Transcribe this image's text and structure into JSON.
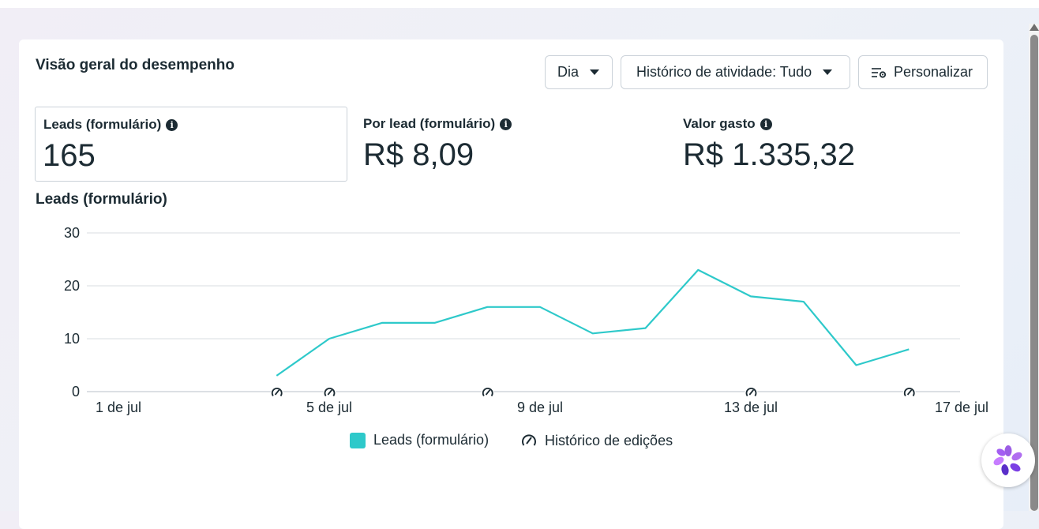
{
  "header": {
    "title": "Visão geral do desempenho",
    "period_select": "Dia",
    "history_select": "Histórico de atividade: Tudo",
    "customize_button": "Personalizar"
  },
  "metrics": [
    {
      "label": "Leads (formulário)",
      "value": "165",
      "selected": true
    },
    {
      "label": "Por lead (formulário)",
      "value": "R$ 8,09",
      "selected": false
    },
    {
      "label": "Valor gasto",
      "value": "R$ 1.335,32",
      "selected": false
    }
  ],
  "chart_data": {
    "type": "line",
    "title": "Leads (formulário)",
    "x_ticks": [
      "1 de jul",
      "5 de jul",
      "9 de jul",
      "13 de jul",
      "17 de jul"
    ],
    "y_ticks": [
      "30",
      "20",
      "10",
      "0"
    ],
    "ylim": [
      0,
      30
    ],
    "grid": true,
    "series": [
      {
        "name": "Leads (formulário)",
        "color": "#2ec9ca",
        "x": [
          4,
          5,
          6,
          7,
          8,
          9,
          10,
          11,
          12,
          13,
          14,
          15,
          16
        ],
        "y": [
          3,
          10,
          13,
          13,
          16,
          16,
          11,
          12,
          23,
          18,
          17,
          5,
          8
        ]
      }
    ],
    "edit_markers_x": [
      4,
      5,
      8,
      13,
      16
    ],
    "legend": [
      {
        "label": "Leads (formulário)",
        "icon": "color-swatch"
      },
      {
        "label": "Histórico de edições",
        "icon": "edit-history-icon"
      }
    ],
    "legend_position": "bottom"
  },
  "colors": {
    "accent_line": "#2ec9ca",
    "text": "#1c2b33",
    "grid": "#d8dde2"
  }
}
